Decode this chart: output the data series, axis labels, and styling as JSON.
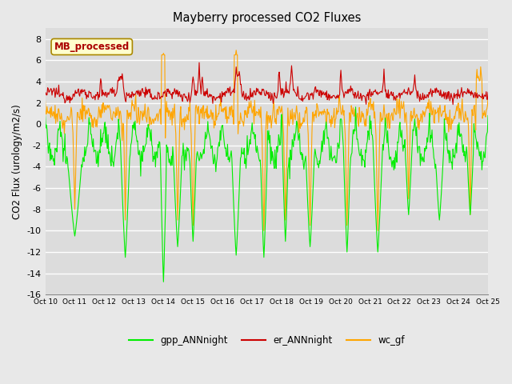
{
  "title": "Mayberry processed CO2 Fluxes",
  "ylabel": "CO2 Flux (urology/m2/s)",
  "ylim": [
    -16,
    9
  ],
  "yticks": [
    -16,
    -14,
    -12,
    -10,
    -8,
    -6,
    -4,
    -2,
    0,
    2,
    4,
    6,
    8
  ],
  "xlabels": [
    "Oct 10",
    "Oct 11",
    "Oct 12",
    "Oct 13",
    "Oct 14",
    "Oct 15",
    "Oct 16",
    "Oct 17",
    "Oct 18",
    "Oct 19",
    "Oct 20",
    "Oct 21",
    "Oct 22",
    "Oct 23",
    "Oct 24",
    "Oct 25"
  ],
  "legend_labels": [
    "gpp_ANNnight",
    "er_ANNnight",
    "wc_gf"
  ],
  "legend_colors": [
    "#00ee00",
    "#cc0000",
    "#ffa500"
  ],
  "annotation_text": "MB_processed",
  "annotation_color": "#aa0000",
  "annotation_bg": "#ffffcc",
  "annotation_border": "#aa8800",
  "bg_color": "#e8e8e8",
  "plot_bg": "#dcdcdc",
  "n_points": 720,
  "seed": 12345
}
